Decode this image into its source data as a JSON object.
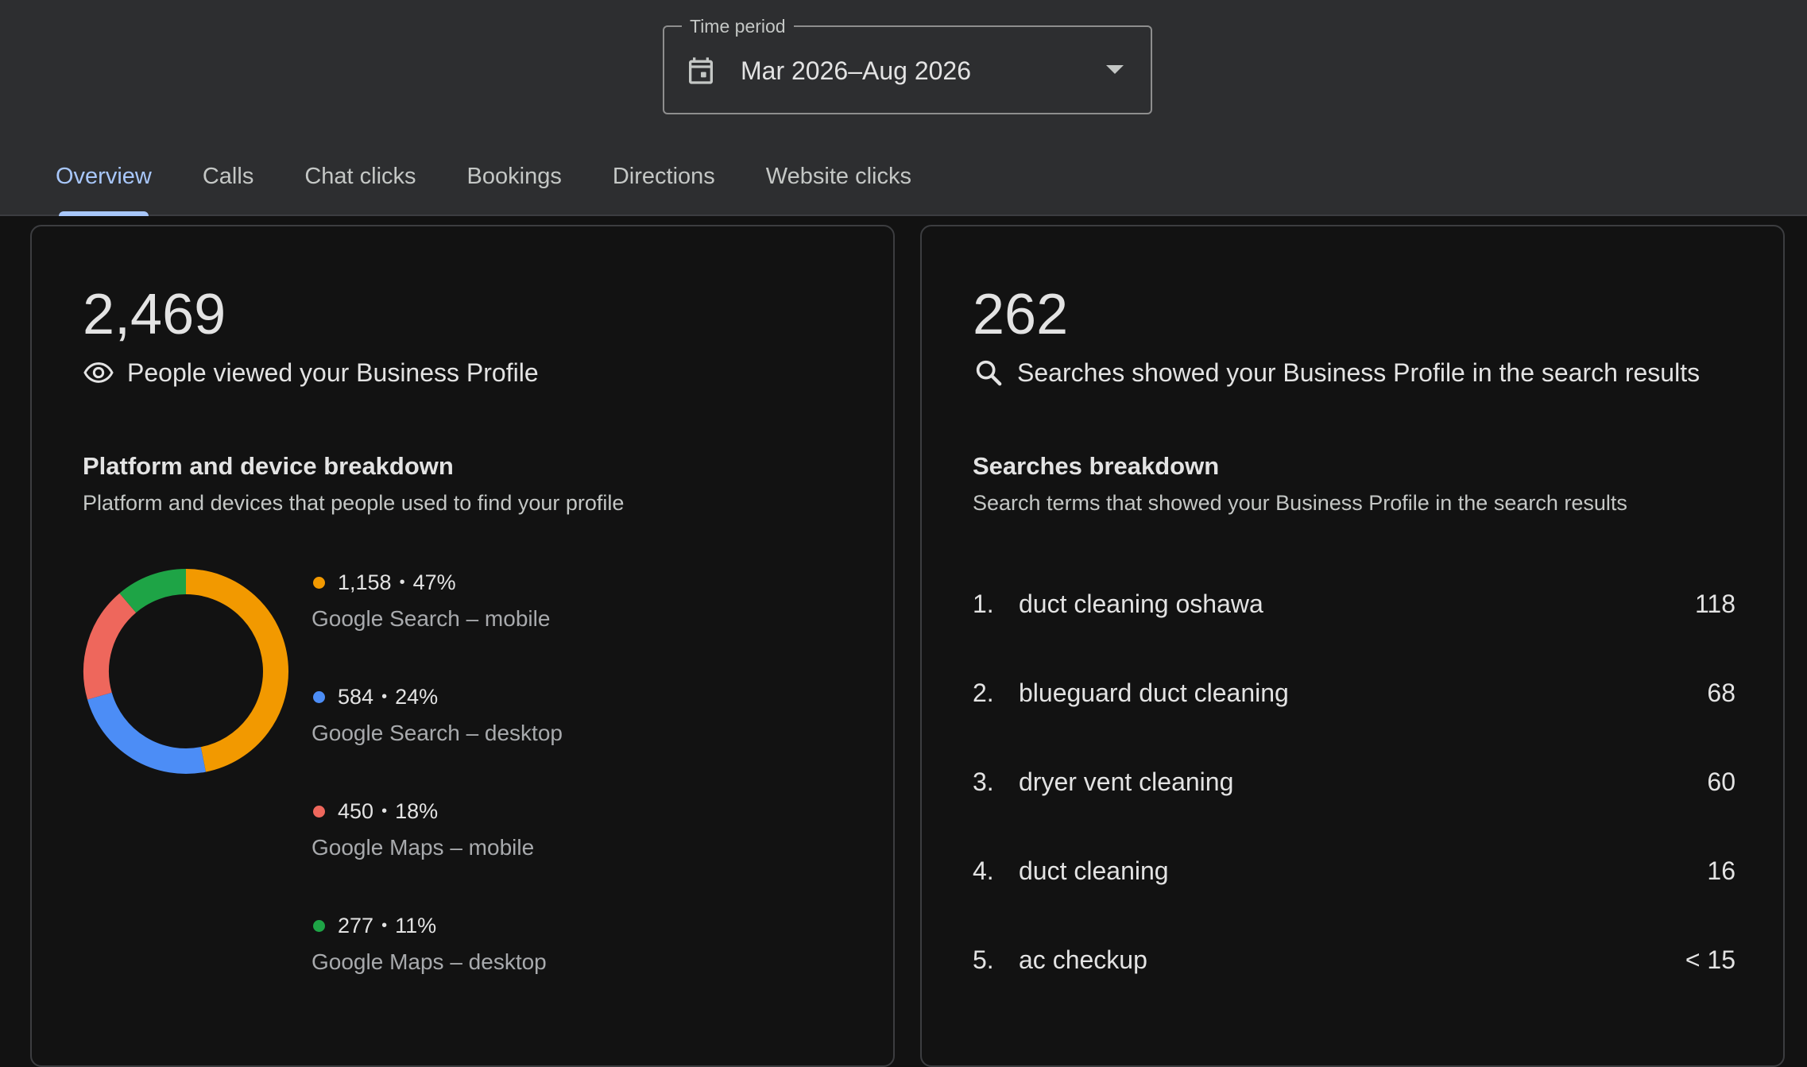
{
  "time_period": {
    "label": "Time period",
    "value": "Mar 2026–Aug 2026"
  },
  "tabs": [
    {
      "label": "Overview",
      "active": true
    },
    {
      "label": "Calls",
      "active": false
    },
    {
      "label": "Chat clicks",
      "active": false
    },
    {
      "label": "Bookings",
      "active": false
    },
    {
      "label": "Directions",
      "active": false
    },
    {
      "label": "Website clicks",
      "active": false
    }
  ],
  "profile_views": {
    "total": "2,469",
    "label": "People viewed your Business Profile",
    "icon": "eye-icon",
    "breakdown_title": "Platform and device breakdown",
    "breakdown_subtitle": "Platform and devices that people used to find your profile",
    "legend": [
      {
        "value": "1,158",
        "percent": "47%",
        "name": "Google Search – mobile",
        "color": "#f29900"
      },
      {
        "value": "584",
        "percent": "24%",
        "name": "Google Search – desktop",
        "color": "#4c8df6"
      },
      {
        "value": "450",
        "percent": "18%",
        "name": "Google Maps – mobile",
        "color": "#ee675c"
      },
      {
        "value": "277",
        "percent": "11%",
        "name": "Google Maps – desktop",
        "color": "#1ea446"
      }
    ]
  },
  "chart_data": {
    "type": "pie",
    "categories": [
      "Google Search – mobile",
      "Google Search – desktop",
      "Google Maps – mobile",
      "Google Maps – desktop"
    ],
    "values": [
      1158,
      584,
      450,
      277
    ],
    "colors": [
      "#f29900",
      "#4c8df6",
      "#ee675c",
      "#1ea446"
    ]
  },
  "searches": {
    "total": "262",
    "label": "Searches showed your Business Profile in the search results",
    "icon": "search-icon",
    "breakdown_title": "Searches breakdown",
    "breakdown_subtitle": "Search terms that showed your Business Profile in the search results",
    "items": [
      {
        "rank": "1.",
        "term": "duct cleaning oshawa",
        "count": "118"
      },
      {
        "rank": "2.",
        "term": "blueguard duct cleaning",
        "count": "68"
      },
      {
        "rank": "3.",
        "term": "dryer vent cleaning",
        "count": "60"
      },
      {
        "rank": "4.",
        "term": "duct cleaning",
        "count": "16"
      },
      {
        "rank": "5.",
        "term": "ac checkup",
        "count": "< 15"
      }
    ]
  }
}
